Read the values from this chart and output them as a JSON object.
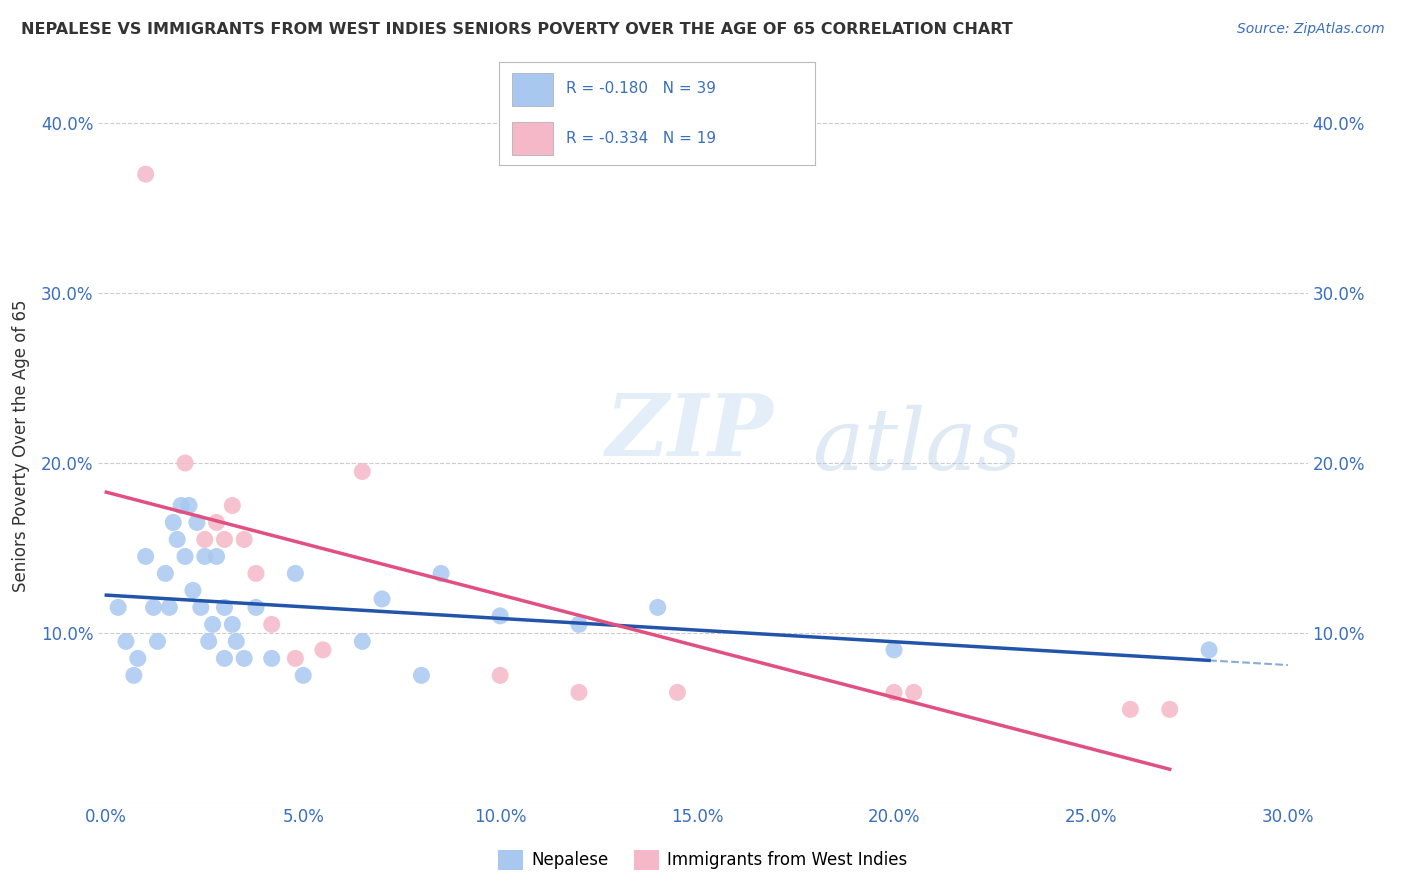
{
  "title": "NEPALESE VS IMMIGRANTS FROM WEST INDIES SENIORS POVERTY OVER THE AGE OF 65 CORRELATION CHART",
  "source": "Source: ZipAtlas.com",
  "ylabel": "Seniors Poverty Over the Age of 65",
  "xlim": [
    -0.002,
    0.305
  ],
  "ylim": [
    0.0,
    0.42
  ],
  "xticks": [
    0.0,
    0.05,
    0.1,
    0.15,
    0.2,
    0.25,
    0.3
  ],
  "yticks": [
    0.0,
    0.1,
    0.2,
    0.3,
    0.4
  ],
  "xtick_labels": [
    "0.0%",
    "5.0%",
    "10.0%",
    "15.0%",
    "20.0%",
    "25.0%",
    "30.0%"
  ],
  "ytick_labels": [
    "",
    "10.0%",
    "20.0%",
    "30.0%",
    "40.0%"
  ],
  "watermark_zip": "ZIP",
  "watermark_atlas": "atlas",
  "legend1_label": "Nepalese",
  "legend2_label": "Immigrants from West Indies",
  "blue_R": "-0.180",
  "blue_N": "39",
  "pink_R": "-0.334",
  "pink_N": "19",
  "blue_color": "#a8c8f0",
  "pink_color": "#f5b8c8",
  "blue_line_color": "#2255aa",
  "pink_line_color": "#e05080",
  "blue_dash_color": "#5588cc",
  "trend_line_color": "#aaaaaa",
  "background_color": "#ffffff",
  "nepalese_x": [
    0.003,
    0.005,
    0.007,
    0.008,
    0.01,
    0.012,
    0.013,
    0.015,
    0.016,
    0.017,
    0.018,
    0.019,
    0.02,
    0.021,
    0.022,
    0.023,
    0.024,
    0.025,
    0.026,
    0.027,
    0.028,
    0.03,
    0.03,
    0.032,
    0.033,
    0.035,
    0.038,
    0.042,
    0.048,
    0.05,
    0.065,
    0.07,
    0.08,
    0.085,
    0.1,
    0.12,
    0.14,
    0.2,
    0.28
  ],
  "nepalese_y": [
    0.115,
    0.095,
    0.075,
    0.085,
    0.145,
    0.115,
    0.095,
    0.135,
    0.115,
    0.165,
    0.155,
    0.175,
    0.145,
    0.175,
    0.125,
    0.165,
    0.115,
    0.145,
    0.095,
    0.105,
    0.145,
    0.115,
    0.085,
    0.105,
    0.095,
    0.085,
    0.115,
    0.085,
    0.135,
    0.075,
    0.095,
    0.12,
    0.075,
    0.135,
    0.11,
    0.105,
    0.115,
    0.09,
    0.09
  ],
  "westindies_x": [
    0.01,
    0.02,
    0.025,
    0.028,
    0.03,
    0.032,
    0.035,
    0.038,
    0.042,
    0.048,
    0.055,
    0.065,
    0.1,
    0.12,
    0.145,
    0.2,
    0.205,
    0.26,
    0.27
  ],
  "westindies_y": [
    0.37,
    0.2,
    0.155,
    0.165,
    0.155,
    0.175,
    0.155,
    0.135,
    0.105,
    0.085,
    0.09,
    0.195,
    0.075,
    0.065,
    0.065,
    0.065,
    0.065,
    0.055,
    0.055
  ]
}
